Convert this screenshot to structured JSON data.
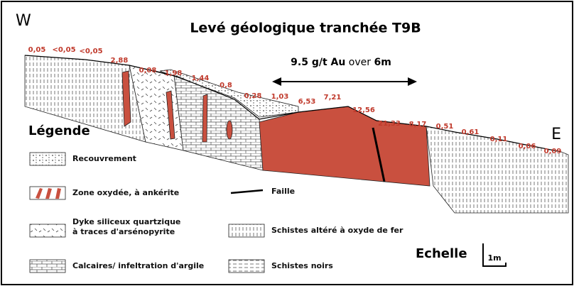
{
  "header": {
    "title": "Levé géologique tranchée T9B",
    "west": "W",
    "east": "E"
  },
  "assays": [
    "0,05",
    "<0,05",
    "<0,05",
    "2,88",
    "0,08",
    "1,98",
    "1,44",
    "0,8",
    "0,28",
    "1,03",
    "6,53",
    "7,21",
    "12,56",
    "21,33",
    "8,17",
    "0,51",
    "0,61",
    "0,11",
    "0,06",
    "0,09"
  ],
  "annotation": {
    "grade": "9.5 g/t Au",
    "connector": "over",
    "length": "6m"
  },
  "legend": {
    "title": "Légende",
    "items": [
      {
        "lines": [
          "Recouvrement"
        ]
      },
      {
        "lines": [
          "Zone oxydée, à ankérite"
        ]
      },
      {
        "lines": [
          "Dyke siliceux quartzique",
          "à traces d'arsénopyrite"
        ]
      },
      {
        "lines": [
          "Calcaires/ infeltration d'argile"
        ]
      },
      {
        "lines": [
          "Faille"
        ]
      },
      {
        "lines": [
          "Schistes altéré à oxyde de fer"
        ]
      },
      {
        "lines": [
          "Schistes noirs"
        ]
      }
    ]
  },
  "scale": {
    "label": "Echelle",
    "unit": "1m"
  }
}
